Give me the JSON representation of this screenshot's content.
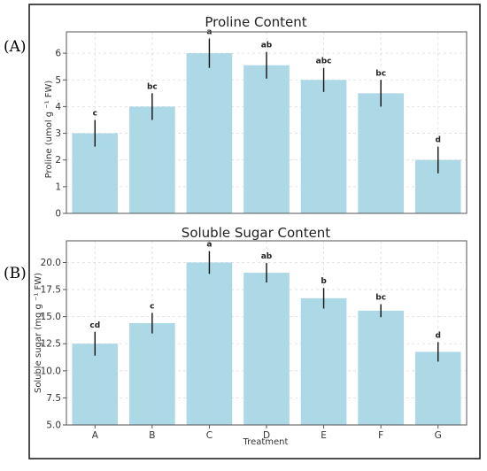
{
  "panels": [
    {
      "label": "(A)"
    },
    {
      "label": "(B)"
    }
  ],
  "chart_data": [
    {
      "type": "bar",
      "title": "Proline Content",
      "xlabel": "",
      "ylabel": "Proline (umol g ⁻¹ FW)",
      "categories": [
        "A",
        "B",
        "C",
        "D",
        "E",
        "F",
        "G"
      ],
      "values": [
        3.0,
        4.0,
        6.0,
        5.55,
        5.0,
        4.5,
        2.0
      ],
      "errors": [
        0.5,
        0.5,
        0.55,
        0.5,
        0.45,
        0.5,
        0.5
      ],
      "significance": [
        "c",
        "bc",
        "a",
        "ab",
        "abc",
        "bc",
        "d"
      ],
      "ylim": [
        0,
        6.8
      ],
      "yticks": [
        "0",
        "1",
        "2",
        "3",
        "4",
        "5",
        "6"
      ],
      "grid": true,
      "color": "#add8e6"
    },
    {
      "type": "bar",
      "title": "Soluble Sugar Content",
      "xlabel": "Treatment",
      "ylabel": "Soluble sugar (mg g ⁻¹ FW)",
      "categories": [
        "A",
        "B",
        "C",
        "D",
        "E",
        "F",
        "G"
      ],
      "values": [
        12.5,
        14.4,
        20.0,
        19.05,
        16.7,
        15.55,
        11.75
      ],
      "errors": [
        1.1,
        0.95,
        1.05,
        0.9,
        0.95,
        0.6,
        0.9
      ],
      "significance": [
        "cd",
        "c",
        "a",
        "ab",
        "b",
        "bc",
        "d"
      ],
      "ylim": [
        5,
        22
      ],
      "yticks": [
        "5.0",
        "7.5",
        "10.0",
        "12.5",
        "15.0",
        "17.5",
        "20.0"
      ],
      "grid": true,
      "color": "#add8e6"
    }
  ]
}
